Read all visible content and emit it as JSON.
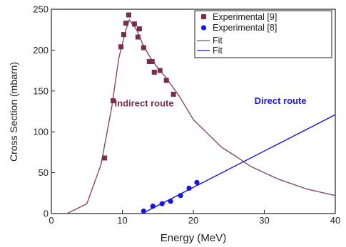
{
  "chart_data": {
    "type": "scatter",
    "title": "",
    "xlabel": "Energy (MeV)",
    "ylabel": "Cross Section (mbarn)",
    "xlim": [
      0,
      40
    ],
    "ylim": [
      0,
      250
    ],
    "x_ticks": [
      0,
      10,
      20,
      30,
      40
    ],
    "y_ticks": [
      0,
      50,
      100,
      150,
      200,
      250
    ],
    "grid": false,
    "legend_position": "top-right",
    "series": [
      {
        "name": "Experimental [9]",
        "kind": "points",
        "marker": "square",
        "color": "#7a2e45",
        "x": [
          7.5,
          8.7,
          9.8,
          10.2,
          10.5,
          10.9,
          11.7,
          12.2,
          12.4,
          13.0,
          13.8,
          14.2,
          14.5,
          15.3,
          16.2,
          17.2
        ],
        "y": [
          68,
          138,
          204,
          219,
          233,
          243,
          232,
          216,
          226,
          203,
          186,
          186,
          173,
          175,
          163,
          146
        ]
      },
      {
        "name": "Experimental [8]",
        "kind": "points",
        "marker": "circle",
        "color": "#1515e6",
        "x": [
          13.0,
          14.3,
          15.6,
          16.8,
          18.2,
          19.4,
          20.5
        ],
        "y": [
          3,
          9,
          12,
          15,
          22,
          31,
          38
        ]
      },
      {
        "name": "Fit",
        "kind": "line",
        "color": "#8a4a5a",
        "x": [
          2.2,
          5,
          7,
          8.5,
          9.5,
          10.5,
          11,
          12,
          13,
          14,
          15,
          16,
          18,
          20,
          22,
          24,
          26,
          28,
          30,
          32,
          34,
          36,
          38,
          40
        ],
        "y": [
          0,
          12,
          60,
          130,
          190,
          225,
          237,
          225,
          205,
          190,
          178,
          168,
          144,
          115,
          98,
          81,
          70,
          58,
          50,
          42,
          36,
          30,
          26,
          22
        ]
      },
      {
        "name": "Fit",
        "kind": "line",
        "color": "#1515e6",
        "x": [
          12.8,
          40
        ],
        "y": [
          0,
          121
        ]
      }
    ],
    "annotations": [
      {
        "text": "Indirect route",
        "x": 8.9,
        "y": 131,
        "color": "#7a2e45"
      },
      {
        "text": "Direct route",
        "x": 28.6,
        "y": 134,
        "color": "#1515e6"
      }
    ]
  }
}
